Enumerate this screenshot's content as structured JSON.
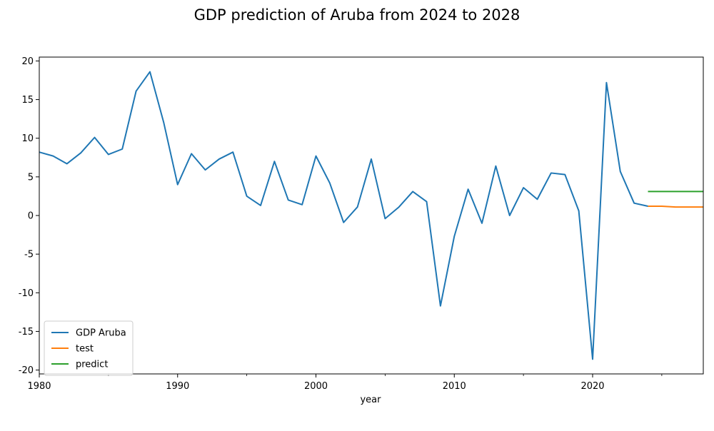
{
  "chart_data": {
    "type": "line",
    "title": "GDP prediction of Aruba from 2024 to 2028",
    "xlabel": "year",
    "ylabel": "",
    "xlim": [
      1980,
      2028
    ],
    "ylim": [
      -20.5,
      20.5
    ],
    "x_ticks": [
      1980,
      1990,
      2000,
      2010,
      2020
    ],
    "y_ticks": [
      -20,
      -15,
      -10,
      -5,
      0,
      5,
      10,
      15,
      20
    ],
    "grid": false,
    "legend_position": "lower-left",
    "series": [
      {
        "name": "GDP Aruba",
        "color": "#1f77b4",
        "x": [
          1980,
          1981,
          1982,
          1983,
          1984,
          1985,
          1986,
          1987,
          1988,
          1989,
          1990,
          1991,
          1992,
          1993,
          1994,
          1995,
          1996,
          1997,
          1998,
          1999,
          2000,
          2001,
          2002,
          2003,
          2004,
          2005,
          2006,
          2007,
          2008,
          2009,
          2010,
          2011,
          2012,
          2013,
          2014,
          2015,
          2016,
          2017,
          2018,
          2019,
          2020,
          2021,
          2022,
          2023,
          2024
        ],
        "values": [
          8.2,
          7.7,
          6.7,
          8.1,
          10.1,
          7.9,
          8.6,
          16.1,
          18.6,
          12.0,
          4.0,
          8.0,
          5.9,
          7.3,
          8.2,
          2.5,
          1.3,
          7.0,
          2.0,
          1.4,
          7.7,
          4.2,
          -0.9,
          1.1,
          7.3,
          -0.4,
          1.1,
          3.1,
          1.8,
          -11.7,
          -2.7,
          3.4,
          -1.0,
          6.4,
          0.0,
          3.6,
          2.1,
          5.5,
          5.3,
          0.6,
          -18.6,
          17.2,
          5.7,
          1.6,
          1.2
        ]
      },
      {
        "name": "test",
        "color": "#ff7f0e",
        "x": [
          2024,
          2025,
          2026,
          2027,
          2028
        ],
        "values": [
          1.2,
          1.2,
          1.1,
          1.1,
          1.1
        ]
      },
      {
        "name": "predict",
        "color": "#2ca02c",
        "x": [
          2024,
          2025,
          2026,
          2027,
          2028
        ],
        "values": [
          3.1,
          3.1,
          3.1,
          3.1,
          3.1
        ]
      }
    ]
  }
}
